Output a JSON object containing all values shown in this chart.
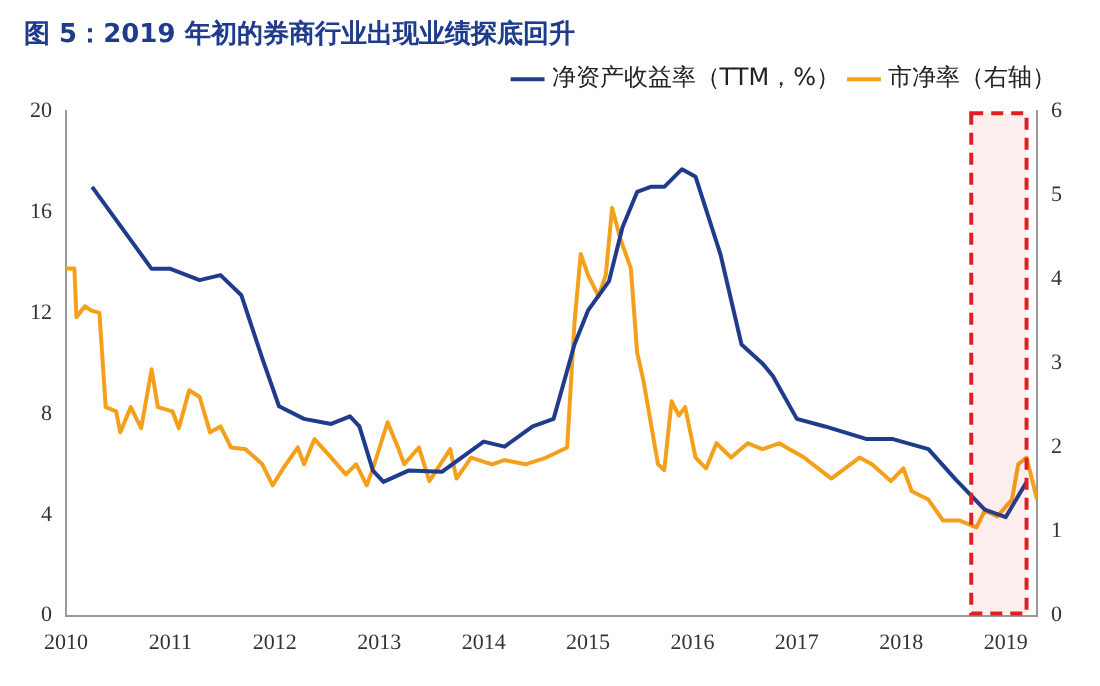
{
  "chart_data": {
    "type": "line",
    "title": "图 5：2019 年初的券商行业出现业绩探底回升",
    "xlim": [
      2010,
      2019.3
    ],
    "xticks": [
      2010,
      2011,
      2012,
      2013,
      2014,
      2015,
      2016,
      2017,
      2018,
      2019
    ],
    "ylim": [
      0,
      20
    ],
    "yticks": [
      0,
      4,
      8,
      12,
      16,
      20
    ],
    "y2lim": [
      0,
      6
    ],
    "y2ticks": [
      0,
      1,
      2,
      3,
      4,
      5,
      6
    ],
    "grid": false,
    "legend": "top",
    "marker": "none",
    "line_style": "solid",
    "bands": [
      {
        "axis": "x",
        "from": 2018.67,
        "to": 2019.2,
        "color": "#e02020"
      }
    ],
    "series": [
      {
        "name": "净资产收益率（TTM，%）",
        "color": "#1f3c8c",
        "x": [
          2010.25,
          2010.82,
          2011.0,
          2011.28,
          2011.48,
          2011.68,
          2011.88,
          2012.04,
          2012.28,
          2012.54,
          2012.72,
          2012.81,
          2012.94,
          2013.04,
          2013.28,
          2013.6,
          2014.0,
          2014.2,
          2014.47,
          2014.67,
          2014.87,
          2015.0,
          2015.2,
          2015.33,
          2015.47,
          2015.6,
          2015.73,
          2015.9,
          2016.03,
          2016.27,
          2016.47,
          2016.67,
          2016.77,
          2017.0,
          2017.27,
          2017.67,
          2017.92,
          2018.26,
          2018.52,
          2018.8,
          2019.0,
          2019.2
        ],
        "values": [
          17.0,
          13.75,
          13.75,
          13.3,
          13.5,
          12.7,
          10.2,
          8.3,
          7.8,
          7.6,
          7.9,
          7.5,
          5.75,
          5.3,
          5.75,
          5.7,
          6.9,
          6.7,
          7.5,
          7.8,
          10.75,
          12.1,
          13.25,
          15.4,
          16.8,
          17.0,
          17.0,
          17.7,
          17.4,
          14.3,
          10.75,
          10.0,
          9.5,
          7.8,
          7.5,
          7.0,
          7.0,
          6.6,
          5.4,
          4.2,
          3.9,
          5.3
        ]
      },
      {
        "name": "市净率（右轴）",
        "color": "#f5a01a",
        "axis": "y2",
        "x": [
          2010.0,
          2010.08,
          2010.1,
          2010.18,
          2010.24,
          2010.32,
          2010.38,
          2010.48,
          2010.52,
          2010.62,
          2010.72,
          2010.82,
          2010.88,
          2011.02,
          2011.08,
          2011.18,
          2011.28,
          2011.38,
          2011.48,
          2011.58,
          2011.72,
          2011.88,
          2011.98,
          2012.08,
          2012.22,
          2012.28,
          2012.38,
          2012.54,
          2012.68,
          2012.78,
          2012.88,
          2012.94,
          2013.08,
          2013.18,
          2013.24,
          2013.38,
          2013.48,
          2013.68,
          2013.74,
          2013.88,
          2014.08,
          2014.2,
          2014.4,
          2014.6,
          2014.8,
          2014.87,
          2014.93,
          2015.0,
          2015.1,
          2015.17,
          2015.23,
          2015.31,
          2015.41,
          2015.47,
          2015.53,
          2015.6,
          2015.67,
          2015.73,
          2015.8,
          2015.87,
          2015.93,
          2016.03,
          2016.13,
          2016.23,
          2016.37,
          2016.53,
          2016.67,
          2016.83,
          2017.07,
          2017.33,
          2017.6,
          2017.72,
          2017.9,
          2018.02,
          2018.1,
          2018.26,
          2018.4,
          2018.56,
          2018.72,
          2018.8,
          2018.92,
          2019.06,
          2019.12,
          2019.2,
          2019.3
        ],
        "values": [
          4.13,
          4.13,
          3.55,
          3.68,
          3.63,
          3.6,
          2.48,
          2.43,
          2.18,
          2.48,
          2.23,
          2.93,
          2.48,
          2.43,
          2.23,
          2.68,
          2.6,
          2.18,
          2.25,
          2.0,
          1.98,
          1.8,
          1.55,
          1.75,
          2.0,
          1.8,
          2.1,
          1.88,
          1.68,
          1.8,
          1.55,
          1.75,
          2.3,
          2.0,
          1.8,
          2.0,
          1.6,
          1.98,
          1.63,
          1.88,
          1.8,
          1.85,
          1.8,
          1.88,
          2.0,
          3.48,
          4.3,
          4.05,
          3.8,
          4.05,
          4.85,
          4.48,
          4.13,
          3.13,
          2.8,
          2.3,
          1.8,
          1.73,
          2.55,
          2.38,
          2.48,
          1.88,
          1.75,
          2.05,
          1.88,
          2.05,
          1.98,
          2.05,
          1.88,
          1.63,
          1.88,
          1.8,
          1.6,
          1.75,
          1.48,
          1.38,
          1.13,
          1.13,
          1.05,
          1.25,
          1.18,
          1.38,
          1.8,
          1.88,
          1.38
        ]
      }
    ]
  }
}
